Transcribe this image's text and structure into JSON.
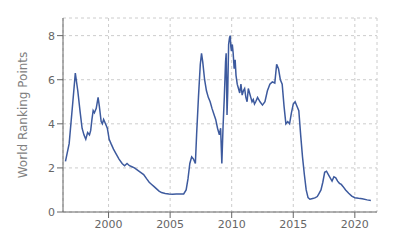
{
  "chart_data": {
    "type": "line",
    "ylabel": "World Ranking Points",
    "color": "#3d5a9e",
    "grid": true,
    "xlim": [
      1996.3,
      2021.8
    ],
    "ylim": [
      0,
      8.8
    ],
    "xticks": [
      2000,
      2005,
      2010,
      2015,
      2020
    ],
    "yticks": [
      0,
      2,
      4,
      6,
      8
    ],
    "x": [
      1996.5,
      1996.8,
      1997.1,
      1997.3,
      1997.5,
      1997.7,
      1997.85,
      1998.0,
      1998.15,
      1998.3,
      1998.45,
      1998.55,
      1998.65,
      1998.75,
      1998.85,
      1999.0,
      1999.15,
      1999.25,
      1999.4,
      1999.5,
      1999.6,
      1999.75,
      1999.9,
      2000.05,
      2000.2,
      2000.4,
      2000.6,
      2000.85,
      2001.1,
      2001.3,
      2001.5,
      2001.7,
      2001.9,
      2002.1,
      2002.35,
      2002.6,
      2002.85,
      2003.1,
      2003.3,
      2003.5,
      2003.7,
      2003.9,
      2004.1,
      2004.3,
      2004.6,
      2004.9,
      2005.2,
      2005.5,
      2005.8,
      2006.1,
      2006.3,
      2006.45,
      2006.6,
      2006.75,
      2006.9,
      2007.05,
      2007.15,
      2007.3,
      2007.45,
      2007.55,
      2007.65,
      2007.8,
      2007.95,
      2008.1,
      2008.25,
      2008.4,
      2008.55,
      2008.7,
      2008.85,
      2009.0,
      2009.1,
      2009.2,
      2009.3,
      2009.4,
      2009.5,
      2009.55,
      2009.62,
      2009.68,
      2009.75,
      2009.82,
      2009.88,
      2009.93,
      2009.98,
      2010.05,
      2010.12,
      2010.2,
      2010.28,
      2010.35,
      2010.45,
      2010.55,
      2010.65,
      2010.75,
      2010.85,
      2010.95,
      2011.05,
      2011.15,
      2011.25,
      2011.35,
      2011.45,
      2011.55,
      2011.65,
      2011.75,
      2011.85,
      2011.95,
      2012.1,
      2012.3,
      2012.5,
      2012.7,
      2012.9,
      2013.1,
      2013.3,
      2013.5,
      2013.65,
      2013.8,
      2013.95,
      2014.1,
      2014.25,
      2014.4,
      2014.55,
      2014.7,
      2014.85,
      2015.0,
      2015.15,
      2015.3,
      2015.45,
      2015.6,
      2015.75,
      2015.9,
      2016.05,
      2016.2,
      2016.35,
      2016.5,
      2016.65,
      2016.8,
      2016.95,
      2017.1,
      2017.25,
      2017.4,
      2017.55,
      2017.7,
      2017.85,
      2018.0,
      2018.15,
      2018.3,
      2018.45,
      2018.6,
      2018.75,
      2018.9,
      2019.05,
      2019.25,
      2019.5,
      2019.75,
      2020.0,
      2020.3,
      2020.6,
      2021.0,
      2021.3
    ],
    "values": [
      2.3,
      3.1,
      5.0,
      6.3,
      5.5,
      4.5,
      3.8,
      3.5,
      3.3,
      3.6,
      3.5,
      3.7,
      4.2,
      4.6,
      4.5,
      4.7,
      5.2,
      4.8,
      4.1,
      4.0,
      4.2,
      4.0,
      3.8,
      3.3,
      3.1,
      2.85,
      2.65,
      2.4,
      2.2,
      2.1,
      2.2,
      2.1,
      2.05,
      2.0,
      1.9,
      1.8,
      1.7,
      1.5,
      1.35,
      1.25,
      1.15,
      1.05,
      0.95,
      0.88,
      0.84,
      0.82,
      0.81,
      0.82,
      0.82,
      0.82,
      1.0,
      1.5,
      2.2,
      2.5,
      2.4,
      2.2,
      3.5,
      5.2,
      6.7,
      7.2,
      6.8,
      6.0,
      5.5,
      5.2,
      5.0,
      4.7,
      4.45,
      4.2,
      3.8,
      3.5,
      3.8,
      2.2,
      3.9,
      5.2,
      6.8,
      7.2,
      4.4,
      5.5,
      7.6,
      7.9,
      8.0,
      7.5,
      7.3,
      7.6,
      7.2,
      6.5,
      6.9,
      6.2,
      5.8,
      5.6,
      5.4,
      5.8,
      5.3,
      5.5,
      5.6,
      5.2,
      5.0,
      5.6,
      5.4,
      5.2,
      5.0,
      5.1,
      4.9,
      5.0,
      5.2,
      5.0,
      4.85,
      5.0,
      5.5,
      5.8,
      5.9,
      5.85,
      6.7,
      6.5,
      6.0,
      5.8,
      4.8,
      4.0,
      4.1,
      4.0,
      4.5,
      4.9,
      5.0,
      4.8,
      4.6,
      3.5,
      2.5,
      1.7,
      1.0,
      0.65,
      0.58,
      0.6,
      0.62,
      0.65,
      0.7,
      0.85,
      1.0,
      1.35,
      1.8,
      1.85,
      1.7,
      1.55,
      1.4,
      1.6,
      1.55,
      1.4,
      1.3,
      1.25,
      1.15,
      1.0,
      0.85,
      0.72,
      0.65,
      0.62,
      0.6,
      0.55,
      0.52
    ]
  }
}
